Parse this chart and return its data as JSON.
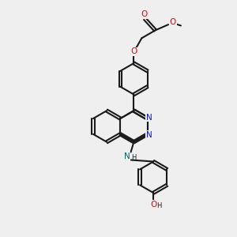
{
  "bg_color": "#efefef",
  "bond_color": "#1a1a1a",
  "N_color": "#1111cc",
  "O_color": "#cc1111",
  "NH_color": "#006666",
  "lw": 1.5,
  "dbo": 0.05,
  "r": 0.6,
  "figw": 3.0,
  "figh": 3.0,
  "dpi": 100,
  "xlim": [
    2.0,
    8.0
  ],
  "ylim": [
    0.5,
    9.5
  ]
}
